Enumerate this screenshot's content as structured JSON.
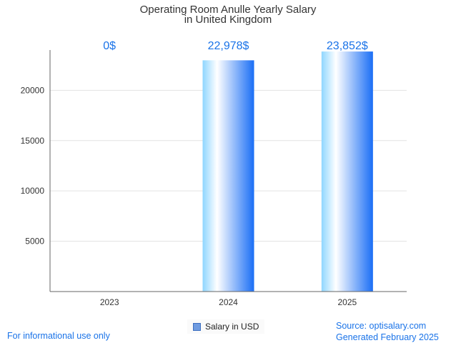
{
  "chart_data": {
    "type": "bar",
    "title": [
      "Operating Room Anulle Yearly Salary",
      "in United Kingdom"
    ],
    "categories": [
      "2023",
      "2024",
      "2025"
    ],
    "series": [
      {
        "name": "Salary in USD",
        "values": [
          0,
          22978,
          23852
        ]
      }
    ],
    "data_labels": [
      "0$",
      "22,978$",
      "23,852$"
    ],
    "yticks": [
      5000,
      10000,
      15000,
      20000
    ],
    "ylim": [
      0,
      24000
    ],
    "grid": true,
    "legend": "bottom-center",
    "colors": {
      "bar_dark": "#1a6ef5",
      "bar_light": "#ffffff",
      "bar_edge": "#8fd6ff",
      "label": "#1a73e8"
    }
  },
  "footer": {
    "disclaimer": "For informational use only",
    "source": "Source: optisalary.com",
    "generated": "Generated February 2025"
  }
}
